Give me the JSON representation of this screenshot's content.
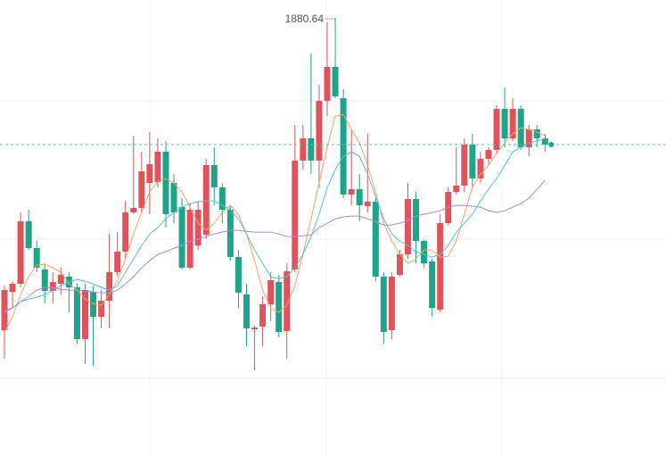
{
  "chart_data": {
    "type": "candlestick",
    "open": [
      1775.64,
      1788.54,
      1791.24,
      1812.24,
      1803.24,
      1796.04,
      1788.84,
      1791.24,
      1793.64,
      1790.04,
      1772.64,
      1788.54,
      1780.14,
      1785.54,
      1795.14,
      1802.04,
      1815.24,
      1816.74,
      1825.14,
      1825.44,
      1835.64,
      1825.14,
      1817.04,
      1796.64,
      1804.14,
      1807.74,
      1831.14,
      1823.64,
      1816.14,
      1800.24,
      1787.64,
      1775.94,
      1776.84,
      1784.34,
      1791.84,
      1775.34,
      1796.04,
      1832.64,
      1840.14,
      1832.64,
      1852.74,
      1864.14,
      1853.64,
      1821.24,
      1823.04,
      1817.34,
      1818.84,
      1793.64,
      1775.64,
      1794.24,
      1801.14,
      1819.74,
      1805.64,
      1798.74,
      1782.54,
      1811.64,
      1822.14,
      1824.24,
      1838.04,
      1826.64,
      1833.24,
      1836.24,
      1850.04,
      1840.14,
      1850.04,
      1837.14,
      1843.14,
      1840.14
    ],
    "high": [
      1790.64,
      1792.14,
      1815.24,
      1816.14,
      1805.64,
      1798.14,
      1795.14,
      1796.64,
      1795.14,
      1791.24,
      1791.24,
      1790.64,
      1789.14,
      1808.04,
      1808.64,
      1819.14,
      1841.04,
      1835.64,
      1842.24,
      1840.14,
      1839.24,
      1828.14,
      1820.04,
      1818.24,
      1819.14,
      1833.24,
      1837.14,
      1825.14,
      1817.64,
      1802.64,
      1791.24,
      1777.14,
      1787.04,
      1795.14,
      1794.24,
      1798.14,
      1844.64,
      1844.64,
      1868.64,
      1858.14,
      1879.14,
      1880.64,
      1856.64,
      1843.14,
      1828.14,
      1841.64,
      1820.04,
      1795.14,
      1795.14,
      1802.64,
      1825.14,
      1822.14,
      1806.24,
      1799.64,
      1814.64,
      1823.64,
      1837.14,
      1840.14,
      1841.64,
      1835.64,
      1837.14,
      1851.24,
      1857.24,
      1853.64,
      1851.24,
      1844.64,
      1844.64,
      1841.64
    ],
    "low": [
      1766.04,
      1783.14,
      1790.04,
      1802.64,
      1795.14,
      1784.64,
      1784.64,
      1787.64,
      1781.64,
      1771.14,
      1764.24,
      1763.64,
      1776.24,
      1776.24,
      1793.64,
      1799.64,
      1814.64,
      1815.24,
      1814.64,
      1823.64,
      1810.14,
      1811.64,
      1796.04,
      1796.04,
      1802.64,
      1806.24,
      1817.64,
      1811.64,
      1799.04,
      1783.14,
      1770.24,
      1762.14,
      1770.24,
      1778.64,
      1773.24,
      1766.04,
      1795.14,
      1829.64,
      1828.14,
      1823.64,
      1847.64,
      1853.64,
      1820.04,
      1817.64,
      1812.24,
      1815.24,
      1792.14,
      1771.14,
      1772.64,
      1793.64,
      1799.64,
      1798.14,
      1796.64,
      1780.14,
      1781.64,
      1811.04,
      1821.24,
      1822.14,
      1823.64,
      1825.14,
      1831.14,
      1835.04,
      1837.14,
      1839.24,
      1836.24,
      1834.14,
      1837.14,
      1835.64
    ],
    "close": [
      1789.14,
      1791.24,
      1812.24,
      1803.24,
      1796.64,
      1788.84,
      1791.84,
      1794.24,
      1790.04,
      1772.64,
      1789.14,
      1780.14,
      1785.54,
      1795.14,
      1802.04,
      1815.24,
      1816.74,
      1829.04,
      1831.44,
      1835.64,
      1814.64,
      1815.24,
      1796.64,
      1816.14,
      1816.14,
      1831.14,
      1823.64,
      1816.14,
      1800.24,
      1788.24,
      1776.24,
      1776.54,
      1784.34,
      1792.44,
      1775.04,
      1795.44,
      1832.64,
      1840.14,
      1832.64,
      1852.74,
      1864.14,
      1854.24,
      1821.24,
      1823.04,
      1817.64,
      1818.84,
      1793.64,
      1775.04,
      1793.64,
      1801.14,
      1819.74,
      1805.64,
      1798.14,
      1783.14,
      1811.64,
      1822.14,
      1824.24,
      1838.04,
      1826.64,
      1833.24,
      1836.24,
      1850.04,
      1840.14,
      1850.04,
      1837.14,
      1843.14,
      1840.14,
      1838.04
    ],
    "up_color": "#e0525c",
    "down_color": "#1ea489",
    "series": [
      {
        "color": "#f4a45f",
        "values": [
          1775.0,
          1780.1,
          1787.6,
          1793.6,
          1797.5,
          1797.8,
          1796.6,
          1795.1,
          1791.2,
          1789.1,
          1786.1,
          1784.6,
          1784.0,
          1787.6,
          1792.1,
          1799.6,
          1808.0,
          1815.2,
          1822.1,
          1825.7,
          1826.6,
          1825.1,
          1822.1,
          1817.0,
          1811.6,
          1809.2,
          1811.6,
          1815.2,
          1817.6,
          1814.6,
          1808.0,
          1799.0,
          1789.1,
          1783.1,
          1781.6,
          1784.0,
          1790.6,
          1801.1,
          1813.1,
          1825.1,
          1837.1,
          1847.6,
          1848.2,
          1843.1,
          1838.6,
          1831.1,
          1822.1,
          1811.6,
          1805.6,
          1801.1,
          1798.1,
          1799.6,
          1802.6,
          1802.6,
          1800.2,
          1800.5,
          1805.6,
          1814.6,
          1823.6,
          1828.1,
          1831.1,
          1835.0,
          1838.6,
          1841.6,
          1843.7,
          1843.1,
          1842.2,
          1841.0
        ]
      },
      {
        "color": "#4ec6d0",
        "values": [
          1781.6,
          1783.1,
          1785.2,
          1786.1,
          1786.7,
          1787.6,
          1789.1,
          1790.6,
          1791.8,
          1792.7,
          1792.1,
          1791.2,
          1790.0,
          1789.1,
          1790.6,
          1795.1,
          1799.6,
          1804.1,
          1808.0,
          1810.1,
          1813.1,
          1815.2,
          1817.0,
          1818.2,
          1818.8,
          1819.1,
          1819.1,
          1817.6,
          1816.1,
          1813.1,
          1808.0,
          1802.6,
          1798.1,
          1793.6,
          1793.0,
          1793.6,
          1796.6,
          1801.1,
          1807.1,
          1814.6,
          1823.6,
          1829.6,
          1834.1,
          1835.6,
          1834.1,
          1828.1,
          1820.6,
          1813.1,
          1808.0,
          1805.6,
          1804.1,
          1802.0,
          1801.1,
          1800.2,
          1801.1,
          1804.1,
          1808.6,
          1811.6,
          1814.6,
          1819.1,
          1823.0,
          1826.6,
          1831.1,
          1835.6,
          1837.1,
          1838.6,
          1839.2,
          1840.1
        ]
      },
      {
        "color": "#a88bd6",
        "values": [
          1782.2,
          1783.1,
          1785.2,
          1787.0,
          1789.1,
          1790.0,
          1790.0,
          1789.4,
          1789.1,
          1789.1,
          1788.8,
          1788.5,
          1788.2,
          1788.2,
          1789.1,
          1791.2,
          1793.6,
          1796.6,
          1799.0,
          1801.1,
          1802.0,
          1803.2,
          1804.1,
          1805.6,
          1806.2,
          1807.1,
          1808.0,
          1808.6,
          1809.2,
          1809.2,
          1808.9,
          1808.6,
          1808.6,
          1808.6,
          1808.0,
          1807.1,
          1807.1,
          1807.4,
          1807.7,
          1810.1,
          1811.6,
          1813.1,
          1813.7,
          1814.0,
          1814.0,
          1813.1,
          1812.2,
          1811.0,
          1811.0,
          1811.6,
          1812.5,
          1814.0,
          1814.6,
          1815.2,
          1815.8,
          1817.0,
          1817.6,
          1817.6,
          1817.3,
          1817.0,
          1815.8,
          1815.2,
          1815.8,
          1817.0,
          1818.2,
          1820.0,
          1823.0,
          1826.0
        ]
      }
    ],
    "ylim": [
      1733.34,
      1886.64
    ],
    "yticks": [
      1759.44,
      1806.24,
      1852.74
    ],
    "grid": true
  }
}
